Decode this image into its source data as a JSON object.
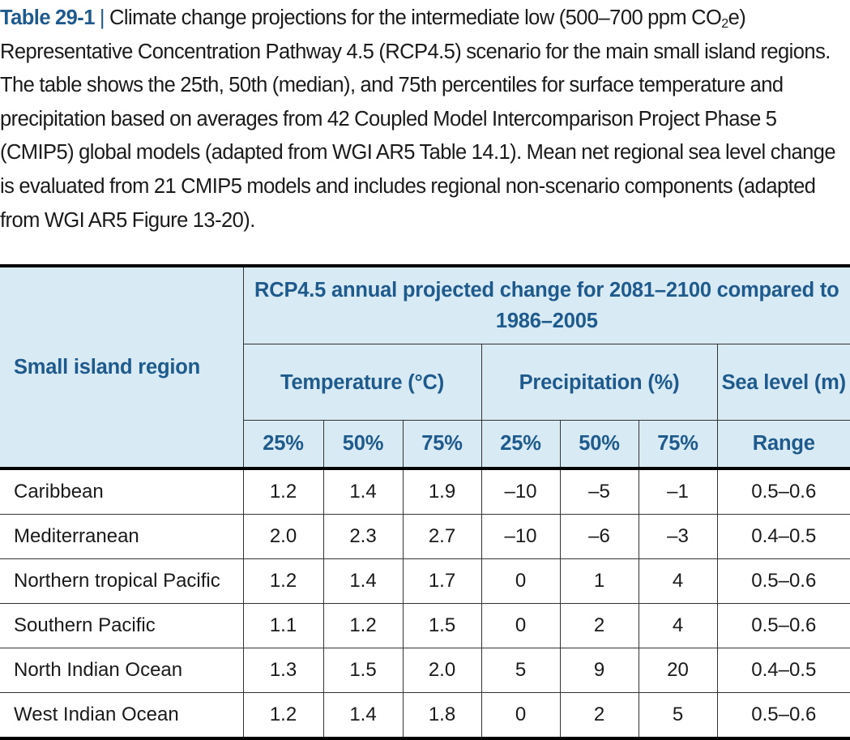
{
  "caption": {
    "label": "Table 29-1",
    "separator": "|",
    "text_part1": "Climate change projections for the intermediate low (500–700 ppm CO",
    "text_sub": "2",
    "text_part2": "e) Representative Concentration Pathway 4.5 (RCP4.5) scenario for the main small island regions. The table shows the 25th, 50th (median), and 75th percentiles for surface temperature and precipitation based on averages from 42 Coupled Model Intercomparison Project Phase 5 (CMIP5) global models (adapted from WGI AR5 Table 14.1). Mean net regional sea level change is evaluated from 21 CMIP5 models and includes regional non-scenario components (adapted from WGI AR5 Figure 13-20)."
  },
  "table": {
    "header": {
      "region": "Small island region",
      "group": "RCP4.5 annual projected change for 2081–2100 compared to 1986–2005",
      "temperature": "Temperature (°C)",
      "precipitation": "Precipitation (%)",
      "sea_level": "Sea level (m)",
      "temp_p25": "25%",
      "temp_p50": "50%",
      "temp_p75": "75%",
      "precip_p25": "25%",
      "precip_p50": "50%",
      "precip_p75": "75%",
      "sea_range": "Range"
    },
    "rows": [
      {
        "region": "Caribbean",
        "t25": "1.2",
        "t50": "1.4",
        "t75": "1.9",
        "p25": "–10",
        "p50": "–5",
        "p75": "–1",
        "sea": "0.5–0.6"
      },
      {
        "region": "Mediterranean",
        "t25": "2.0",
        "t50": "2.3",
        "t75": "2.7",
        "p25": "–10",
        "p50": "–6",
        "p75": "–3",
        "sea": "0.4–0.5"
      },
      {
        "region": "Northern tropical Pacific",
        "t25": "1.2",
        "t50": "1.4",
        "t75": "1.7",
        "p25": "0",
        "p50": "1",
        "p75": "4",
        "sea": "0.5–0.6"
      },
      {
        "region": "Southern Pacific",
        "t25": "1.1",
        "t50": "1.2",
        "t75": "1.5",
        "p25": "0",
        "p50": "2",
        "p75": "4",
        "sea": "0.5–0.6"
      },
      {
        "region": "North Indian Ocean",
        "t25": "1.3",
        "t50": "1.5",
        "t75": "2.0",
        "p25": "5",
        "p50": "9",
        "p75": "20",
        "sea": "0.4–0.5"
      },
      {
        "region": "West Indian Ocean",
        "t25": "1.2",
        "t50": "1.4",
        "t75": "1.8",
        "p25": "0",
        "p50": "2",
        "p75": "5",
        "sea": "0.5–0.6"
      }
    ]
  }
}
